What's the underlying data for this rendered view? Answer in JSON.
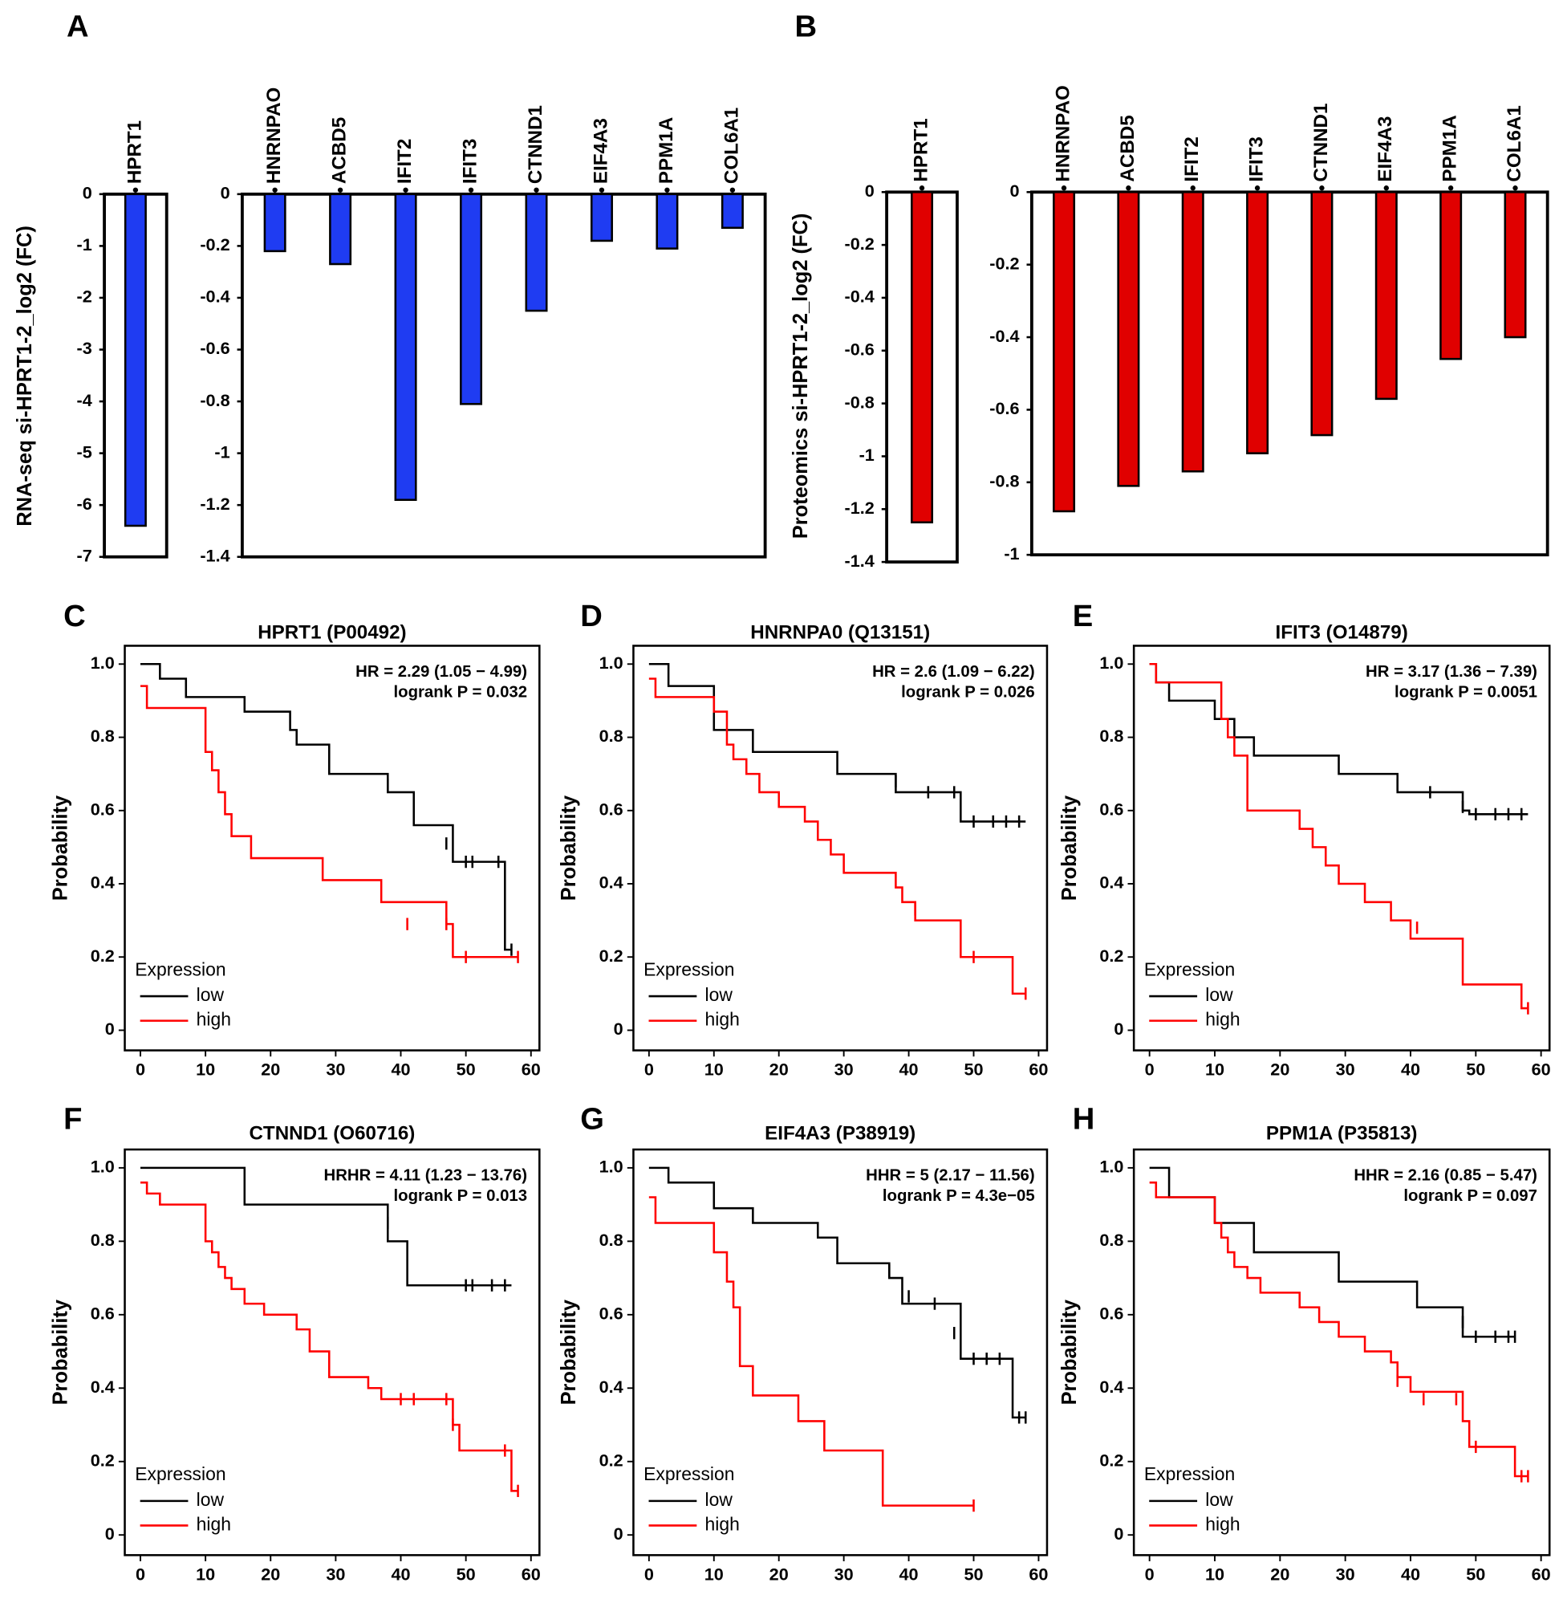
{
  "chart_data": [
    {
      "type": "bar",
      "panel": "A",
      "ylabel": "RNA-seq si-HPRT1-2_log2 (FC)",
      "color": "#1f3cf2",
      "subplots": [
        {
          "categories": [
            "HPRT1"
          ],
          "values": [
            -6.4
          ],
          "ylim": [
            -7,
            0
          ],
          "yticks": [
            0,
            -1,
            -2,
            -3,
            -4,
            -5,
            -6,
            -7
          ]
        },
        {
          "categories": [
            "HNRNPAO",
            "ACBD5",
            "IFIT2",
            "IFIT3",
            "CTNND1",
            "EIF4A3",
            "PPM1A",
            "COL6A1"
          ],
          "values": [
            -0.22,
            -0.27,
            -1.18,
            -0.81,
            -0.45,
            -0.18,
            -0.21,
            -0.13
          ],
          "ylim": [
            -1.4,
            0
          ],
          "yticks": [
            0,
            -0.2,
            -0.4,
            -0.6,
            -0.8,
            -1,
            -1.2,
            -1.4
          ]
        }
      ]
    },
    {
      "type": "bar",
      "panel": "B",
      "ylabel": "Proteomics si-HPRT1-2_log2 (FC)",
      "color": "#e00000",
      "subplots": [
        {
          "categories": [
            "HPRT1"
          ],
          "values": [
            -1.25
          ],
          "ylim": [
            -1.4,
            0
          ],
          "yticks": [
            0,
            -0.2,
            -0.4,
            -0.6,
            -0.8,
            -1,
            -1.2,
            -1.4
          ]
        },
        {
          "categories": [
            "HNRNPAO",
            "ACBD5",
            "IFIT2",
            "IFIT3",
            "CTNND1",
            "EIF4A3",
            "PPM1A",
            "COL6A1"
          ],
          "values": [
            -0.88,
            -0.81,
            -0.77,
            -0.72,
            -0.67,
            -0.57,
            -0.46,
            -0.4
          ],
          "ylim": [
            -1,
            0
          ],
          "yticks": [
            0,
            -0.2,
            -0.4,
            -0.6,
            -0.8,
            -1
          ]
        }
      ]
    },
    {
      "type": "step",
      "panel": "C",
      "title": "HPRT1 (P00492)",
      "annotations": [
        "HR = 2.29 (1.05 − 4.99)",
        "logrank P = 0.032"
      ],
      "ylabel": "Probability",
      "legend_title": "Expression",
      "legend": "lower left",
      "xlim": [
        -2.4,
        61.3
      ],
      "ylim": [
        -0.055,
        1.05
      ],
      "xticks": [
        0,
        10,
        20,
        30,
        40,
        50,
        60
      ],
      "yticks": [
        0,
        0.2,
        0.4,
        0.6,
        0.8,
        {
          "value": 1,
          "label": "1.0"
        }
      ],
      "series": [
        {
          "name": "low",
          "color": "#000000",
          "x": [
            0,
            3,
            7,
            16,
            23,
            24,
            29,
            38,
            42,
            48,
            56,
            57
          ],
          "values": [
            1,
            0.96,
            0.91,
            0.87,
            0.82,
            0.78,
            0.7,
            0.65,
            0.56,
            0.46,
            0.22,
            0.22
          ],
          "censor_x": [
            38,
            47,
            50,
            51,
            55,
            57
          ],
          "censor_values": [
            0.67,
            0.51,
            0.46,
            0.46,
            0.46,
            0.22
          ]
        },
        {
          "name": "high",
          "color": "#ff0000",
          "x": [
            0,
            1,
            10,
            11,
            12,
            13,
            14,
            17,
            28,
            37,
            47,
            48,
            58
          ],
          "values": [
            0.94,
            0.88,
            0.76,
            0.71,
            0.65,
            0.59,
            0.53,
            0.47,
            0.41,
            0.35,
            0.29,
            0.2,
            0.2
          ],
          "censor_x": [
            41,
            47,
            50,
            58
          ],
          "censor_values": [
            0.29,
            0.29,
            0.2,
            0.2
          ]
        }
      ]
    },
    {
      "type": "step",
      "panel": "D",
      "title": "HNRNPA0 (Q13151)",
      "annotations": [
        "HR = 2.6 (1.09 − 6.22)",
        "logrank P = 0.026"
      ],
      "ylabel": "Probability",
      "legend_title": "Expression",
      "legend": "lower left",
      "xlim": [
        -2.4,
        61.3
      ],
      "ylim": [
        -0.055,
        1.05
      ],
      "xticks": [
        0,
        10,
        20,
        30,
        40,
        50,
        60
      ],
      "yticks": [
        0,
        0.2,
        0.4,
        0.6,
        0.8,
        {
          "value": 1,
          "label": "1.0"
        }
      ],
      "series": [
        {
          "name": "low",
          "color": "#000000",
          "x": [
            0,
            3,
            10,
            16,
            29,
            38,
            48,
            58
          ],
          "values": [
            1,
            0.94,
            0.82,
            0.76,
            0.7,
            0.65,
            0.57,
            0.57
          ],
          "censor_x": [
            38,
            43,
            47,
            50,
            53,
            55,
            57
          ],
          "censor_values": [
            0.68,
            0.65,
            0.65,
            0.57,
            0.57,
            0.57,
            0.57
          ]
        },
        {
          "name": "high",
          "color": "#ff0000",
          "x": [
            0,
            1,
            10,
            12,
            13,
            15,
            17,
            20,
            24,
            26,
            28,
            30,
            38,
            39,
            41,
            48,
            56,
            58
          ],
          "values": [
            0.96,
            0.91,
            0.87,
            0.78,
            0.74,
            0.7,
            0.65,
            0.61,
            0.57,
            0.52,
            0.48,
            0.43,
            0.39,
            0.35,
            0.3,
            0.2,
            0.1,
            0.1
          ],
          "censor_x": [
            41,
            50,
            58
          ],
          "censor_values": [
            0.33,
            0.2,
            0.1
          ]
        }
      ]
    },
    {
      "type": "step",
      "panel": "E",
      "title": "IFIT3 (O14879)",
      "annotations": [
        "HR = 3.17 (1.36 − 7.39)",
        "logrank P = 0.0051"
      ],
      "ylabel": "Probability",
      "legend_title": "Expression",
      "legend": "lower left",
      "xlim": [
        -2.4,
        61.3
      ],
      "ylim": [
        -0.055,
        1.05
      ],
      "xticks": [
        0,
        10,
        20,
        30,
        40,
        50,
        60
      ],
      "yticks": [
        0,
        0.2,
        0.4,
        0.6,
        0.8,
        {
          "value": 1,
          "label": "1.0"
        }
      ],
      "series": [
        {
          "name": "low",
          "color": "#000000",
          "x": [
            0,
            1,
            3,
            10,
            13,
            16,
            29,
            38,
            48,
            49,
            58
          ],
          "values": [
            1,
            0.95,
            0.9,
            0.85,
            0.8,
            0.75,
            0.7,
            0.65,
            0.6,
            0.59,
            0.59
          ],
          "censor_x": [
            38,
            43,
            48,
            50,
            53,
            55,
            57
          ],
          "censor_values": [
            0.67,
            0.65,
            0.61,
            0.59,
            0.59,
            0.59,
            0.59
          ]
        },
        {
          "name": "high",
          "color": "#ff0000",
          "x": [
            0,
            1,
            11,
            12,
            13,
            15,
            23,
            25,
            27,
            29,
            33,
            37,
            40,
            48,
            57,
            58
          ],
          "values": [
            1,
            0.95,
            0.85,
            0.8,
            0.75,
            0.6,
            0.55,
            0.5,
            0.45,
            0.4,
            0.35,
            0.3,
            0.25,
            0.125,
            0.06,
            0.06
          ],
          "censor_x": [
            41,
            58
          ],
          "censor_values": [
            0.28,
            0.06
          ]
        }
      ]
    },
    {
      "type": "step",
      "panel": "F",
      "title": "CTNND1 (O60716)",
      "annotations": [
        "HRHR = 4.11 (1.23 − 13.76)",
        "logrank P = 0.013"
      ],
      "ylabel": "Probability",
      "legend_title": "Expression",
      "legend": "lower left",
      "xlim": [
        -2.4,
        61.3
      ],
      "ylim": [
        -0.055,
        1.05
      ],
      "xticks": [
        0,
        10,
        20,
        30,
        40,
        50,
        60
      ],
      "yticks": [
        0,
        0.2,
        0.4,
        0.6,
        0.8,
        {
          "value": 1,
          "label": "1.0"
        }
      ],
      "series": [
        {
          "name": "low",
          "color": "#000000",
          "x": [
            0,
            16,
            38,
            41,
            57
          ],
          "values": [
            1,
            0.9,
            0.8,
            0.68,
            0.68
          ],
          "censor_x": [
            38,
            50,
            51,
            54,
            56
          ],
          "censor_values": [
            0.85,
            0.68,
            0.68,
            0.68,
            0.68
          ]
        },
        {
          "name": "high",
          "color": "#ff0000",
          "x": [
            0,
            1,
            3,
            10,
            11,
            12,
            13,
            14,
            16,
            19,
            24,
            26,
            29,
            35,
            37,
            48,
            49,
            57,
            58
          ],
          "values": [
            0.96,
            0.93,
            0.9,
            0.8,
            0.77,
            0.73,
            0.7,
            0.67,
            0.63,
            0.6,
            0.56,
            0.5,
            0.43,
            0.4,
            0.37,
            0.3,
            0.23,
            0.12,
            0.12
          ],
          "censor_x": [
            40,
            42,
            47,
            48,
            56,
            58
          ],
          "censor_values": [
            0.37,
            0.37,
            0.37,
            0.3,
            0.23,
            0.12
          ]
        }
      ]
    },
    {
      "type": "step",
      "panel": "G",
      "title": "EIF4A3 (P38919)",
      "annotations": [
        "HHR = 5 (2.17 − 11.56)",
        "logrank P = 4.3e−05"
      ],
      "ylabel": "Probability",
      "legend_title": "Expression",
      "legend": "lower left",
      "xlim": [
        -2.4,
        61.3
      ],
      "ylim": [
        -0.055,
        1.05
      ],
      "xticks": [
        0,
        10,
        20,
        30,
        40,
        50,
        60
      ],
      "yticks": [
        0,
        0.2,
        0.4,
        0.6,
        0.8,
        {
          "value": 1,
          "label": "1.0"
        }
      ],
      "series": [
        {
          "name": "low",
          "color": "#000000",
          "x": [
            0,
            3,
            10,
            16,
            26,
            29,
            37,
            39,
            48,
            56,
            58
          ],
          "values": [
            1,
            0.96,
            0.89,
            0.85,
            0.81,
            0.74,
            0.7,
            0.63,
            0.48,
            0.32,
            0.32
          ],
          "censor_x": [
            37,
            40,
            44,
            47,
            50,
            52,
            54,
            57,
            58
          ],
          "censor_values": [
            0.72,
            0.65,
            0.63,
            0.55,
            0.48,
            0.48,
            0.48,
            0.32,
            0.32
          ]
        },
        {
          "name": "high",
          "color": "#ff0000",
          "x": [
            0,
            1,
            10,
            12,
            13,
            14,
            16,
            23,
            27,
            36,
            50
          ],
          "values": [
            0.92,
            0.85,
            0.77,
            0.69,
            0.62,
            0.46,
            0.38,
            0.31,
            0.23,
            0.08,
            0.08
          ],
          "censor_x": [
            50
          ],
          "censor_values": [
            0.08
          ]
        }
      ]
    },
    {
      "type": "step",
      "panel": "H",
      "title": "PPM1A (P35813)",
      "annotations": [
        "HHR = 2.16 (0.85 − 5.47)",
        "logrank P = 0.097"
      ],
      "ylabel": "Probability",
      "legend_title": "Expression",
      "legend": "lower left",
      "xlim": [
        -2.4,
        61.3
      ],
      "ylim": [
        -0.055,
        1.05
      ],
      "xticks": [
        0,
        10,
        20,
        30,
        40,
        50,
        60
      ],
      "yticks": [
        0,
        0.2,
        0.4,
        0.6,
        0.8,
        {
          "value": 1,
          "label": "1.0"
        }
      ],
      "series": [
        {
          "name": "low",
          "color": "#000000",
          "x": [
            0,
            3,
            10,
            16,
            29,
            41,
            48,
            56
          ],
          "values": [
            1,
            0.92,
            0.85,
            0.77,
            0.69,
            0.62,
            0.54,
            0.54
          ],
          "censor_x": [
            48,
            50,
            53,
            55,
            56
          ],
          "censor_values": [
            0.58,
            0.54,
            0.54,
            0.54,
            0.54
          ]
        },
        {
          "name": "high",
          "color": "#ff0000",
          "x": [
            0,
            1,
            10,
            11,
            12,
            13,
            15,
            17,
            23,
            26,
            29,
            33,
            37,
            38,
            40,
            48,
            49,
            56,
            58
          ],
          "values": [
            0.96,
            0.92,
            0.85,
            0.81,
            0.77,
            0.73,
            0.7,
            0.66,
            0.62,
            0.58,
            0.54,
            0.5,
            0.47,
            0.43,
            0.39,
            0.31,
            0.24,
            0.16,
            0.16
          ],
          "censor_x": [
            38,
            42,
            47,
            50,
            57,
            58
          ],
          "censor_values": [
            0.42,
            0.37,
            0.37,
            0.24,
            0.16,
            0.16
          ]
        }
      ]
    }
  ]
}
